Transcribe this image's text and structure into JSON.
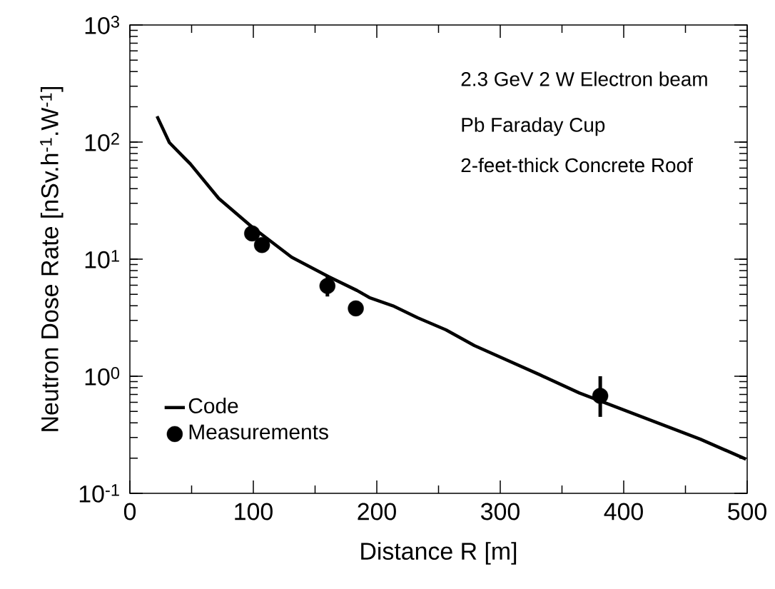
{
  "chart_data": {
    "type": "line",
    "xlabel": "Distance R   [m]",
    "ylabel": "Neutron Dose Rate  [nSv.h$^{-1}$.W$^{-1}$]",
    "log": "y",
    "xlim": [
      0,
      500
    ],
    "ylim": [
      0.1,
      1000
    ],
    "xticks": [
      0,
      100,
      200,
      300,
      400,
      500
    ],
    "yticks": [
      {
        "value": 0.1,
        "label": "10$^{-1}$"
      },
      {
        "value": 1,
        "label": "10$^{0}$"
      },
      {
        "value": 10,
        "label": "10$^{1}$"
      },
      {
        "value": 100,
        "label": "10$^{2}$"
      },
      {
        "value": 1000,
        "label": "10$^{3}$"
      }
    ],
    "grid": false,
    "legend": "bottom left",
    "annotations": [
      "2.3 GeV 2 W Electron beam",
      "Pb Faraday Cup",
      "2-feet-thick Concrete Roof"
    ],
    "series": [
      {
        "name": "Code",
        "color": "#000000",
        "marker": "none",
        "x": [
          22,
          32,
          49,
          72,
          99,
          131,
          161,
          184,
          194,
          213,
          233,
          256,
          279,
          332,
          364,
          462,
          499
        ],
        "values": [
          166,
          99,
          65,
          33,
          18.8,
          10.4,
          7.1,
          5.4,
          4.7,
          4.0,
          3.16,
          2.49,
          1.83,
          1.03,
          0.72,
          0.29,
          0.196
        ]
      },
      {
        "name": "Measurements",
        "type": "scatter",
        "color": "#000000",
        "marker": "circle",
        "x": [
          99,
          107,
          160,
          183,
          381
        ],
        "values": [
          16.6,
          13.2,
          5.9,
          3.8,
          0.68
        ],
        "errors": [
          null,
          null,
          [
            4.8,
            7.3
          ],
          null,
          [
            0.45,
            1.0
          ]
        ]
      }
    ]
  }
}
